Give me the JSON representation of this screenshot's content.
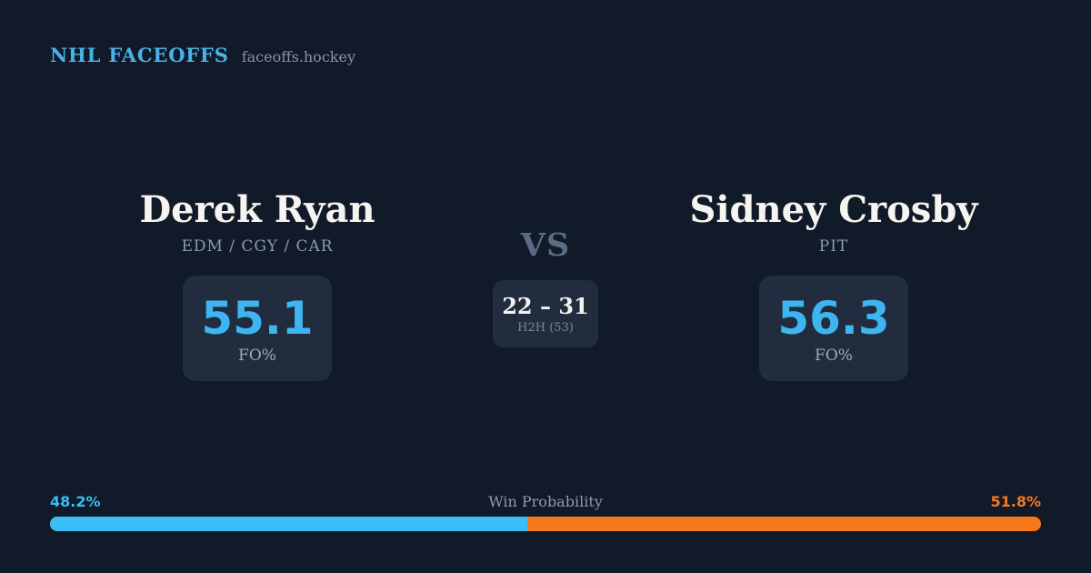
{
  "header": {
    "brand": "NHL FACEOFFS",
    "domain": "faceoffs.hockey"
  },
  "player_left": {
    "name": "Derek Ryan",
    "teams": "EDM / CGY / CAR",
    "stat_value": "55.1",
    "stat_label": "FO%"
  },
  "versus": {
    "label": "VS",
    "h2h_score": "22 – 31",
    "h2h_note": "H2H (53)"
  },
  "player_right": {
    "name": "Sidney Crosby",
    "teams": "PIT",
    "stat_value": "56.3",
    "stat_label": "FO%"
  },
  "win_probability": {
    "title": "Win Probability",
    "left_label": "48.2%",
    "right_label": "51.8%",
    "left_value": 48.2,
    "right_value": 51.8
  },
  "colors": {
    "background": "#111a28",
    "card": "#212d3e",
    "brand_blue": "#4cb0e8",
    "stat_blue": "#3cb5f0",
    "bar_blue": "#3bbdf5",
    "bar_orange": "#f8791c",
    "name_white": "#f6f4ef",
    "muted_gray": "#8e9bad"
  }
}
